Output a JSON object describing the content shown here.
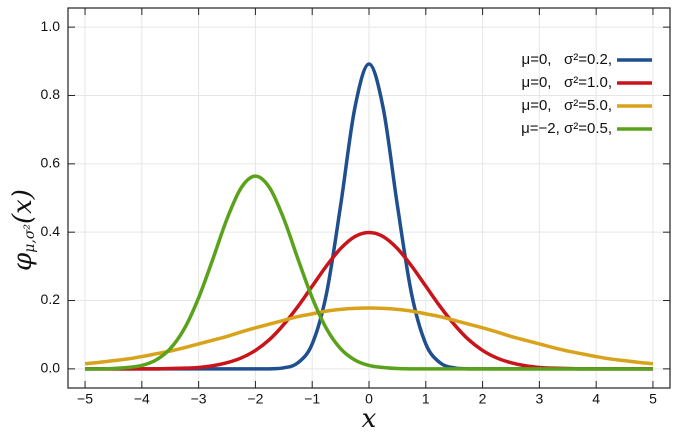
{
  "chart_data": {
    "type": "line",
    "ylabel": {
      "main": "φ",
      "sub": "μ,σ²",
      "arg": "(x)"
    },
    "xlabel": "x",
    "x": [
      -5,
      -4.75,
      -4.5,
      -4.25,
      -4,
      -3.75,
      -3.5,
      -3.25,
      -3,
      -2.75,
      -2.5,
      -2.25,
      -2,
      -1.75,
      -1.5,
      -1.25,
      -1,
      -0.75,
      -0.5,
      -0.25,
      0,
      0.25,
      0.5,
      0.75,
      1,
      1.25,
      1.5,
      1.75,
      2,
      2.25,
      2.5,
      2.75,
      3,
      3.25,
      3.5,
      3.75,
      4,
      4.25,
      4.5,
      4.75,
      5
    ],
    "series": [
      {
        "name": "μ=0,   σ²=0.2,",
        "color": "#1f4f8f",
        "values": [
          0,
          0,
          0,
          0,
          0,
          0,
          0,
          0,
          0,
          0,
          0,
          0,
          0,
          0,
          0.003,
          0.018,
          0.073,
          0.219,
          0.478,
          0.763,
          0.892,
          0.763,
          0.478,
          0.219,
          0.073,
          0.018,
          0.003,
          0,
          0,
          0,
          0,
          0,
          0,
          0,
          0,
          0,
          0,
          0,
          0,
          0,
          0
        ]
      },
      {
        "name": "μ=0,   σ²=1.0,",
        "color": "#c8141a",
        "values": [
          0,
          0,
          0,
          0,
          0,
          0,
          0.001,
          0.002,
          0.004,
          0.009,
          0.018,
          0.032,
          0.054,
          0.086,
          0.13,
          0.183,
          0.242,
          0.301,
          0.352,
          0.387,
          0.399,
          0.387,
          0.352,
          0.301,
          0.242,
          0.183,
          0.13,
          0.086,
          0.054,
          0.032,
          0.018,
          0.009,
          0.004,
          0.002,
          0.001,
          0,
          0,
          0,
          0,
          0,
          0
        ]
      },
      {
        "name": "μ=0,   σ²=5.0,",
        "color": "#d8a21a",
        "values": [
          0.015,
          0.019,
          0.024,
          0.029,
          0.036,
          0.044,
          0.052,
          0.062,
          0.073,
          0.084,
          0.095,
          0.108,
          0.12,
          0.131,
          0.142,
          0.153,
          0.161,
          0.169,
          0.174,
          0.177,
          0.178,
          0.177,
          0.174,
          0.169,
          0.161,
          0.153,
          0.142,
          0.131,
          0.12,
          0.108,
          0.095,
          0.084,
          0.073,
          0.062,
          0.052,
          0.044,
          0.036,
          0.029,
          0.024,
          0.019,
          0.015
        ]
      },
      {
        "name": "μ=−2, σ²=0.5,",
        "color": "#5aa11c",
        "values": [
          0,
          0,
          0.001,
          0.004,
          0.01,
          0.026,
          0.059,
          0.118,
          0.208,
          0.321,
          0.439,
          0.53,
          0.564,
          0.53,
          0.439,
          0.321,
          0.208,
          0.118,
          0.059,
          0.026,
          0.01,
          0.004,
          0.001,
          0,
          0,
          0,
          0,
          0,
          0,
          0,
          0,
          0,
          0,
          0,
          0,
          0,
          0,
          0,
          0,
          0,
          0
        ]
      }
    ],
    "xlim": [
      -5.3,
      5.3
    ],
    "ylim": [
      -0.056,
      1.056
    ],
    "xticks": [
      {
        "value": -5,
        "label": "−5"
      },
      {
        "value": -4,
        "label": "−4"
      },
      {
        "value": -3,
        "label": "−3"
      },
      {
        "value": -2,
        "label": "−2"
      },
      {
        "value": -1,
        "label": "−1"
      },
      0,
      1,
      2,
      3,
      4,
      5
    ],
    "yticks": [
      {
        "value": 0,
        "label": "0.0"
      },
      {
        "value": 0.2,
        "label": "0.2"
      },
      {
        "value": 0.4,
        "label": "0.4"
      },
      {
        "value": 0.6,
        "label": "0.6"
      },
      {
        "value": 0.8,
        "label": "0.8"
      },
      {
        "value": 1,
        "label": "1.0"
      }
    ],
    "grid": true,
    "legend": "upper right"
  }
}
